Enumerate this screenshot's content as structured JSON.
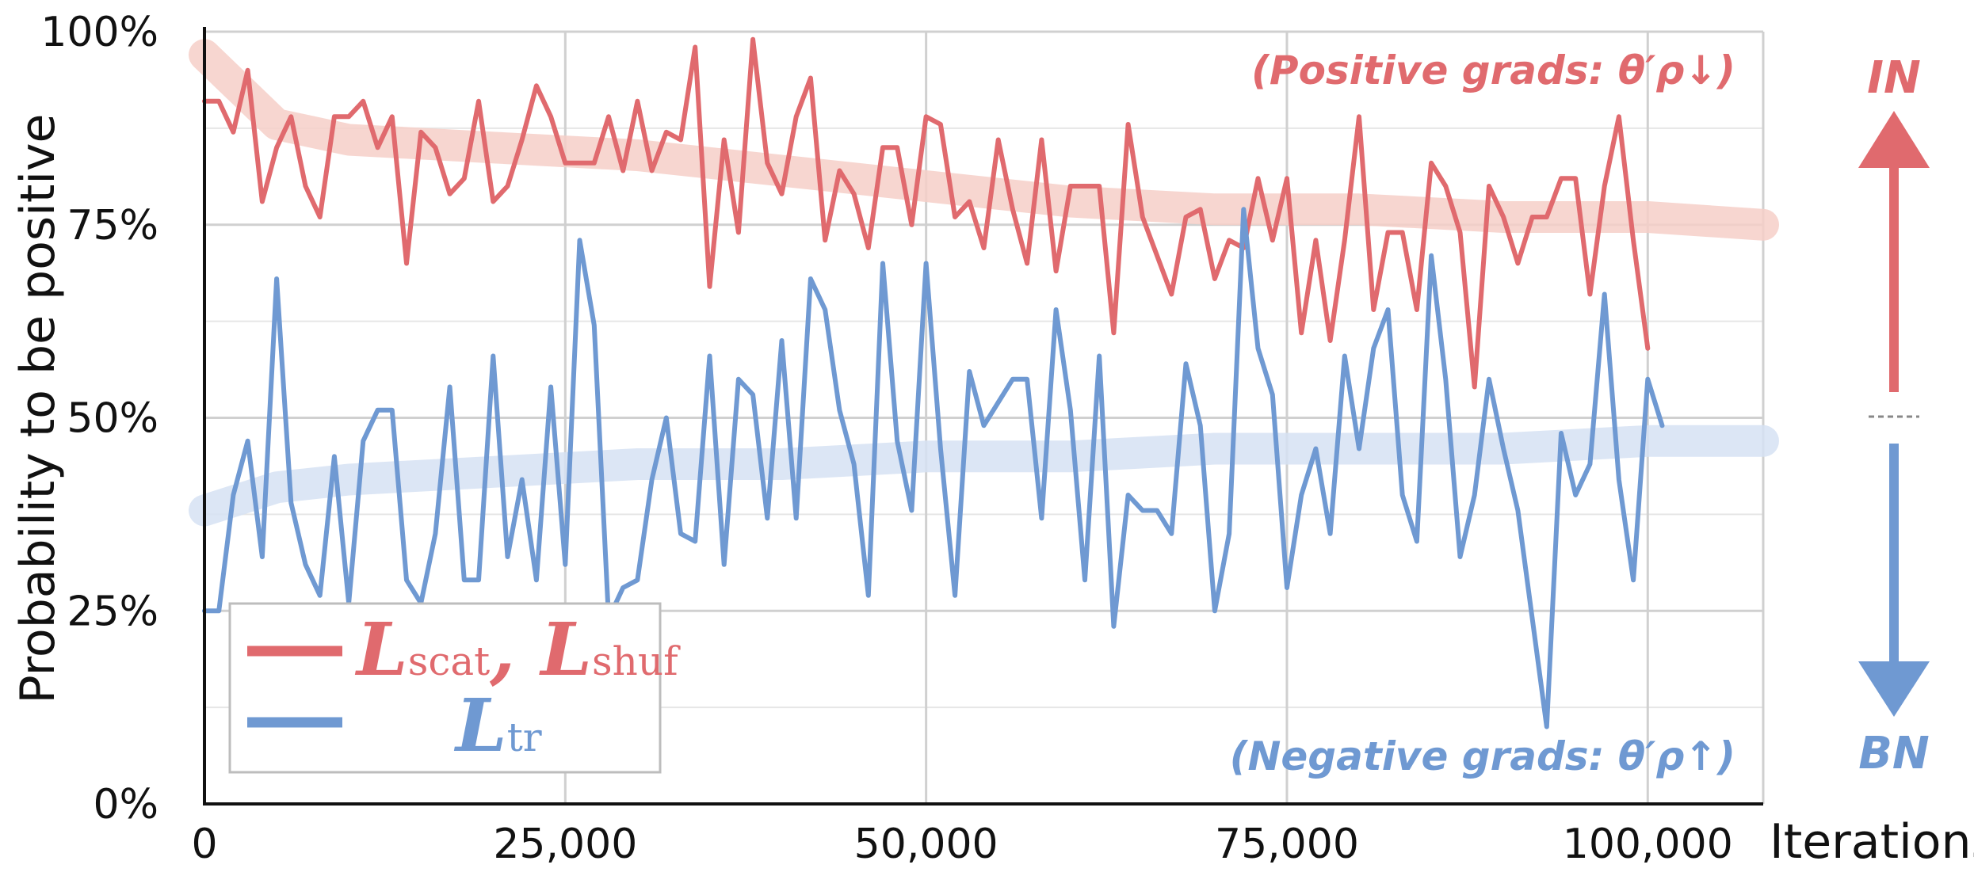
{
  "chart_data": {
    "type": "line",
    "xlabel": "Iterations",
    "ylabel": "Probability to be positive",
    "xlim": [
      0,
      108000
    ],
    "ylim": [
      0,
      100
    ],
    "x_ticks": [
      0,
      25000,
      50000,
      75000,
      100000
    ],
    "x_tick_labels": [
      "0",
      "25,000",
      "50,000",
      "75,000",
      "100,000"
    ],
    "y_ticks": [
      0,
      25,
      50,
      75,
      100
    ],
    "y_tick_labels": [
      "0%",
      "25%",
      "50%",
      "75%",
      "100%"
    ],
    "grid": true,
    "legend_position": "bottom-left",
    "colors": {
      "red": "#e06a6e",
      "blue": "#6f99d2",
      "red_band": "#f6cfc8",
      "blue_band": "#d6e2f3",
      "grid": "#d0d0d0"
    },
    "series": [
      {
        "name": "L_scat, L_shuf",
        "color": "#e06a6e",
        "x_start": 0,
        "x_step": 1000,
        "values": [
          91,
          91,
          87,
          95,
          78,
          85,
          89,
          80,
          76,
          89,
          89,
          91,
          85,
          89,
          70,
          87,
          85,
          79,
          81,
          91,
          78,
          80,
          86,
          93,
          89,
          83,
          83,
          83,
          89,
          82,
          91,
          82,
          87,
          86,
          98,
          67,
          86,
          74,
          99,
          83,
          79,
          89,
          94,
          73,
          82,
          79,
          72,
          85,
          85,
          75,
          89,
          88,
          76,
          78,
          72,
          86,
          77,
          70,
          86,
          69,
          80,
          80,
          80,
          61,
          88,
          76,
          71,
          66,
          76,
          77,
          68,
          73,
          72,
          81,
          73,
          81,
          61,
          73,
          60,
          73,
          89,
          64,
          74,
          74,
          64,
          83,
          80,
          74,
          54,
          80,
          76,
          70,
          76,
          76,
          81,
          81,
          66,
          80,
          89,
          73,
          59
        ],
        "trend": {
          "x": [
            0,
            5000,
            10000,
            20000,
            30000,
            40000,
            50000,
            60000,
            70000,
            80000,
            90000,
            100000,
            108000
          ],
          "y": [
            97,
            88,
            86,
            85,
            84,
            82,
            80,
            78,
            77,
            77,
            76,
            76,
            75
          ]
        }
      },
      {
        "name": "L_tr",
        "color": "#6f99d2",
        "x_start": 0,
        "x_step": 1000,
        "values": [
          25,
          25,
          40,
          47,
          32,
          68,
          39,
          31,
          27,
          45,
          26,
          47,
          51,
          51,
          29,
          26,
          35,
          54,
          29,
          29,
          58,
          32,
          42,
          29,
          54,
          31,
          73,
          62,
          24,
          28,
          29,
          42,
          50,
          35,
          34,
          58,
          31,
          55,
          53,
          37,
          60,
          37,
          68,
          64,
          51,
          44,
          27,
          70,
          47,
          38,
          70,
          46,
          27,
          56,
          49,
          52,
          55,
          55,
          37,
          64,
          51,
          29,
          58,
          23,
          40,
          38,
          38,
          35,
          57,
          49,
          25,
          35,
          77,
          59,
          53,
          28,
          40,
          46,
          35,
          58,
          46,
          59,
          64,
          40,
          34,
          71,
          55,
          32,
          40,
          55,
          46,
          38,
          24,
          10,
          48,
          40,
          44,
          66,
          42,
          29,
          55,
          49
        ],
        "trend": {
          "x": [
            0,
            5000,
            10000,
            20000,
            30000,
            40000,
            50000,
            60000,
            70000,
            80000,
            90000,
            100000,
            108000
          ],
          "y": [
            38,
            41,
            42,
            43,
            44,
            44,
            45,
            45,
            46,
            46,
            46,
            47,
            47
          ]
        }
      }
    ]
  },
  "legend": {
    "red_main": "L",
    "red_sub1": "scat",
    "red_sep": ", ",
    "red_main2": "L",
    "red_sub2": "shuf",
    "blue_main": "L",
    "blue_sub": "tr"
  },
  "annotations": {
    "positive": "(Positive grads: θ′ρ↓)",
    "negative": "(Negative grads: θ′ρ↑)",
    "top_side": "IN",
    "bottom_side": "BN"
  }
}
